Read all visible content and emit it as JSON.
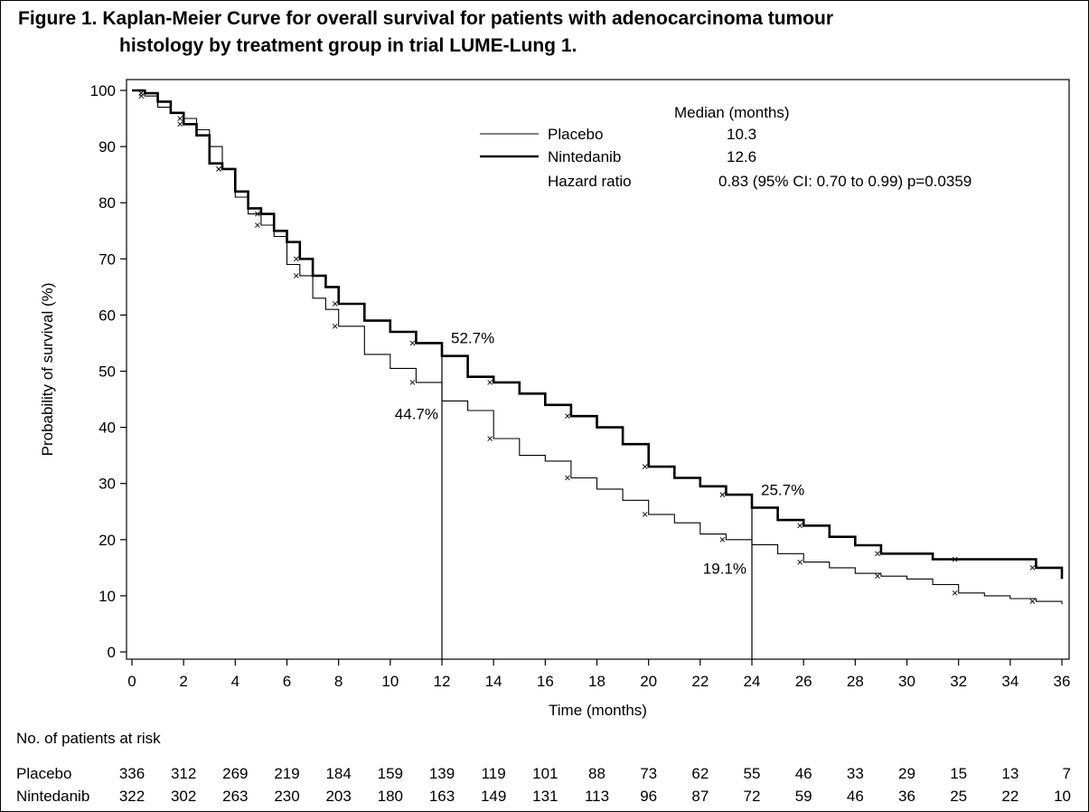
{
  "title": {
    "line1": "Figure 1. Kaplan-Meier Curve for overall survival for patients with adenocarcinoma tumour",
    "line2": "histology by treatment group in trial LUME-Lung 1."
  },
  "chart_data": {
    "type": "line",
    "subtype": "kaplan-meier",
    "xlabel": "Time  (months)",
    "ylabel": "Probability of survival (%)",
    "xlim": [
      0,
      36
    ],
    "ylim": [
      0,
      100
    ],
    "xticks": [
      0,
      2,
      4,
      6,
      8,
      10,
      12,
      14,
      16,
      18,
      20,
      22,
      24,
      26,
      28,
      30,
      32,
      34,
      36
    ],
    "yticks": [
      0,
      10,
      20,
      30,
      40,
      50,
      60,
      70,
      80,
      90,
      100
    ],
    "legend": {
      "header": "Median (months)",
      "placebo_label": "Placebo",
      "placebo_median": "10.3",
      "nintedanib_label": "Nintedanib",
      "nintedanib_median": "12.6",
      "hr_label": "Hazard ratio",
      "hr_value": "0.83 (95% CI: 0.70 to 0.99) p=0.0359"
    },
    "annotations": [
      {
        "x": 12,
        "y": 52.7,
        "label": "52.7%"
      },
      {
        "x": 12,
        "y": 44.7,
        "label": "44.7%"
      },
      {
        "x": 24,
        "y": 25.7,
        "label": "25.7%"
      },
      {
        "x": 24,
        "y": 19.1,
        "label": "19.1%"
      }
    ],
    "series": [
      {
        "name": "Placebo",
        "style": "thin",
        "x": [
          0,
          0.5,
          1,
          1.5,
          2,
          2.5,
          3,
          3.5,
          4,
          4.5,
          5,
          5.5,
          6,
          6.5,
          7,
          7.5,
          8,
          9,
          10,
          11,
          12,
          13,
          14,
          15,
          16,
          17,
          18,
          19,
          20,
          21,
          22,
          23,
          24,
          25,
          26,
          27,
          28,
          29,
          30,
          31,
          32,
          33,
          34,
          35,
          36
        ],
        "y": [
          100,
          99,
          97,
          96,
          95,
          93,
          90,
          86,
          81,
          78,
          76,
          74,
          69,
          67,
          63,
          61,
          58,
          53,
          50.5,
          48,
          44.7,
          43,
          38,
          35,
          34,
          31,
          29,
          27,
          24.5,
          23,
          21,
          20,
          19.1,
          17.5,
          16,
          15,
          14,
          13.5,
          13,
          12,
          10.5,
          10,
          9.5,
          9,
          8.5
        ]
      },
      {
        "name": "Nintedanib",
        "style": "thick",
        "x": [
          0,
          0.5,
          1,
          1.5,
          2,
          2.5,
          3,
          3.5,
          4,
          4.5,
          5,
          5.5,
          6,
          6.5,
          7,
          7.5,
          8,
          9,
          10,
          11,
          12,
          13,
          14,
          15,
          16,
          17,
          18,
          19,
          20,
          21,
          22,
          23,
          24,
          25,
          26,
          27,
          28,
          29,
          30,
          31,
          32,
          33,
          34,
          35,
          36
        ],
        "y": [
          100,
          99.5,
          98,
          96,
          94,
          92,
          87,
          86,
          82,
          79,
          78,
          75,
          73,
          70,
          67,
          65,
          62,
          59,
          57,
          55,
          52.7,
          49,
          48,
          46,
          44,
          42,
          40,
          37,
          33,
          31,
          29.5,
          28,
          25.7,
          23.5,
          22.5,
          20.5,
          19,
          17.5,
          17.5,
          16.5,
          16.5,
          16.5,
          16.5,
          15,
          13
        ]
      }
    ],
    "risk_table": {
      "header": "No. of patients at risk",
      "times": [
        0,
        2,
        4,
        6,
        8,
        10,
        12,
        14,
        16,
        18,
        20,
        22,
        24,
        26,
        28,
        30,
        32,
        34,
        36
      ],
      "rows": [
        {
          "label": "Placebo",
          "values": [
            "336",
            "312",
            "269",
            "219",
            "184",
            "159",
            "139",
            "119",
            "101",
            "88",
            "73",
            "62",
            "55",
            "46",
            "33",
            "29",
            "15",
            "13",
            "7"
          ]
        },
        {
          "label": "Nintedanib",
          "values": [
            "322",
            "302",
            "263",
            "230",
            "203",
            "180",
            "163",
            "149",
            "131",
            "113",
            "96",
            "87",
            "72",
            "59",
            "46",
            "36",
            "25",
            "22",
            "10"
          ]
        }
      ]
    }
  }
}
